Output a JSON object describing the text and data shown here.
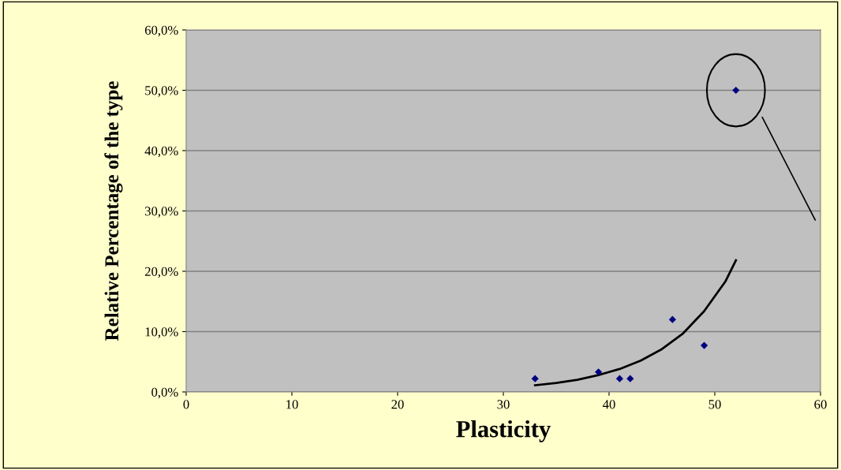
{
  "chart_data": {
    "type": "scatter",
    "xlabel": "Plasticity",
    "ylabel": "Relative Percentage of the type",
    "xlim": [
      0,
      60
    ],
    "xticks": [
      0,
      10,
      20,
      30,
      40,
      50,
      60
    ],
    "ylim": [
      0,
      60
    ],
    "yticks": [
      {
        "value": 0,
        "label": "0,0%"
      },
      {
        "value": 10,
        "label": "10,0%"
      },
      {
        "value": 20,
        "label": "20,0%"
      },
      {
        "value": 30,
        "label": "30,0%"
      },
      {
        "value": 40,
        "label": "40,0%"
      },
      {
        "value": 50,
        "label": "50,0%"
      },
      {
        "value": 60,
        "label": "60,0%"
      }
    ],
    "grid": "y",
    "marker": "diamond",
    "series": [
      {
        "color": "#000080",
        "x": [
          33,
          39,
          41,
          42,
          46,
          49,
          52
        ],
        "values": [
          2.2,
          3.3,
          2.2,
          2.2,
          12.0,
          7.7,
          50.0
        ]
      },
      {
        "type": "line",
        "color": "#000000",
        "marker": "none",
        "line_style": "solid",
        "x": [
          33,
          35,
          37,
          39,
          41,
          43,
          45,
          47,
          49,
          51,
          52
        ],
        "values": [
          1.1,
          1.5,
          2.0,
          2.8,
          3.8,
          5.2,
          7.1,
          9.7,
          13.4,
          18.3,
          21.8
        ]
      }
    ]
  }
}
